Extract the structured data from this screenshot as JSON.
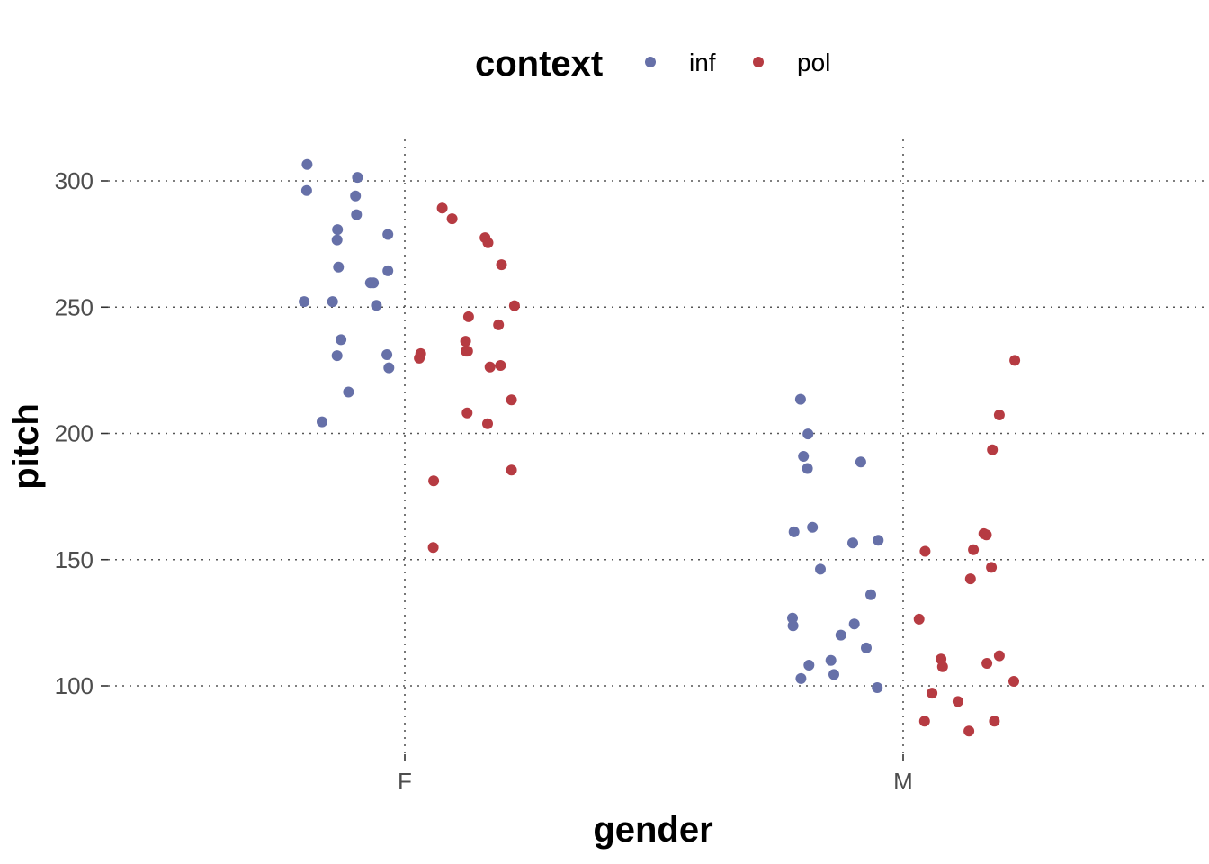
{
  "chart_data": {
    "type": "scatter",
    "title": "",
    "xlabel": "gender",
    "ylabel": "pitch",
    "categories": [
      "F",
      "M"
    ],
    "ylim": [
      70,
      315
    ],
    "yticks": [
      100,
      150,
      200,
      250,
      300
    ],
    "grid": true,
    "legend": {
      "title": "context",
      "placement": "top",
      "entries": [
        {
          "name": "inf",
          "color": "#6670a8"
        },
        {
          "name": "pol",
          "color": "#b63b42"
        }
      ]
    },
    "series": [
      {
        "name": "inf",
        "color": "#6670a8",
        "points": [
          {
            "x": "F",
            "jitter": -0.196,
            "y": 306.5
          },
          {
            "x": "F",
            "jitter": -0.197,
            "y": 296.2
          },
          {
            "x": "F",
            "jitter": -0.095,
            "y": 301.4
          },
          {
            "x": "F",
            "jitter": -0.099,
            "y": 294.0
          },
          {
            "x": "F",
            "jitter": -0.097,
            "y": 286.6
          },
          {
            "x": "F",
            "jitter": -0.135,
            "y": 280.7
          },
          {
            "x": "F",
            "jitter": -0.136,
            "y": 276.6
          },
          {
            "x": "F",
            "jitter": -0.034,
            "y": 278.8
          },
          {
            "x": "F",
            "jitter": -0.133,
            "y": 265.9
          },
          {
            "x": "F",
            "jitter": -0.034,
            "y": 264.4
          },
          {
            "x": "F",
            "jitter": -0.069,
            "y": 259.6
          },
          {
            "x": "F",
            "jitter": -0.063,
            "y": 259.6
          },
          {
            "x": "F",
            "jitter": -0.202,
            "y": 252.2
          },
          {
            "x": "F",
            "jitter": -0.145,
            "y": 252.2
          },
          {
            "x": "F",
            "jitter": -0.057,
            "y": 250.7
          },
          {
            "x": "F",
            "jitter": -0.128,
            "y": 237.1
          },
          {
            "x": "F",
            "jitter": -0.136,
            "y": 230.8
          },
          {
            "x": "F",
            "jitter": -0.036,
            "y": 231.2
          },
          {
            "x": "F",
            "jitter": -0.032,
            "y": 226.0
          },
          {
            "x": "F",
            "jitter": -0.113,
            "y": 216.4
          },
          {
            "x": "F",
            "jitter": -0.166,
            "y": 204.6
          },
          {
            "x": "M",
            "jitter": -0.206,
            "y": 213.5
          },
          {
            "x": "M",
            "jitter": -0.191,
            "y": 199.8
          },
          {
            "x": "M",
            "jitter": -0.2,
            "y": 190.9
          },
          {
            "x": "M",
            "jitter": -0.192,
            "y": 186.1
          },
          {
            "x": "M",
            "jitter": -0.085,
            "y": 188.7
          },
          {
            "x": "M",
            "jitter": -0.182,
            "y": 162.8
          },
          {
            "x": "M",
            "jitter": -0.219,
            "y": 161.0
          },
          {
            "x": "M",
            "jitter": -0.101,
            "y": 156.6
          },
          {
            "x": "M",
            "jitter": -0.05,
            "y": 157.7
          },
          {
            "x": "M",
            "jitter": -0.166,
            "y": 146.2
          },
          {
            "x": "M",
            "jitter": -0.065,
            "y": 136.1
          },
          {
            "x": "M",
            "jitter": -0.222,
            "y": 126.8
          },
          {
            "x": "M",
            "jitter": -0.221,
            "y": 123.8
          },
          {
            "x": "M",
            "jitter": -0.098,
            "y": 124.5
          },
          {
            "x": "M",
            "jitter": -0.125,
            "y": 120.1
          },
          {
            "x": "M",
            "jitter": -0.074,
            "y": 115.0
          },
          {
            "x": "M",
            "jitter": -0.145,
            "y": 110.1
          },
          {
            "x": "M",
            "jitter": -0.189,
            "y": 108.2
          },
          {
            "x": "M",
            "jitter": -0.139,
            "y": 104.5
          },
          {
            "x": "M",
            "jitter": -0.205,
            "y": 102.9
          },
          {
            "x": "M",
            "jitter": -0.052,
            "y": 99.3
          }
        ]
      },
      {
        "name": "pol",
        "color": "#b63b42",
        "points": [
          {
            "x": "F",
            "jitter": 0.075,
            "y": 289.2
          },
          {
            "x": "F",
            "jitter": 0.095,
            "y": 285.0
          },
          {
            "x": "F",
            "jitter": 0.161,
            "y": 277.5
          },
          {
            "x": "F",
            "jitter": 0.167,
            "y": 275.5
          },
          {
            "x": "F",
            "jitter": 0.194,
            "y": 266.8
          },
          {
            "x": "F",
            "jitter": 0.22,
            "y": 250.6
          },
          {
            "x": "F",
            "jitter": 0.128,
            "y": 246.2
          },
          {
            "x": "F",
            "jitter": 0.188,
            "y": 243.0
          },
          {
            "x": "F",
            "jitter": 0.122,
            "y": 236.5
          },
          {
            "x": "F",
            "jitter": 0.123,
            "y": 232.6
          },
          {
            "x": "F",
            "jitter": 0.126,
            "y": 232.6
          },
          {
            "x": "F",
            "jitter": 0.032,
            "y": 231.6
          },
          {
            "x": "F",
            "jitter": 0.029,
            "y": 229.8
          },
          {
            "x": "F",
            "jitter": 0.171,
            "y": 226.3
          },
          {
            "x": "F",
            "jitter": 0.192,
            "y": 226.9
          },
          {
            "x": "F",
            "jitter": 0.214,
            "y": 213.3
          },
          {
            "x": "F",
            "jitter": 0.125,
            "y": 208.1
          },
          {
            "x": "F",
            "jitter": 0.166,
            "y": 203.8
          },
          {
            "x": "F",
            "jitter": 0.214,
            "y": 185.5
          },
          {
            "x": "F",
            "jitter": 0.058,
            "y": 181.2
          },
          {
            "x": "F",
            "jitter": 0.057,
            "y": 154.8
          },
          {
            "x": "M",
            "jitter": 0.224,
            "y": 228.9
          },
          {
            "x": "M",
            "jitter": 0.193,
            "y": 207.3
          },
          {
            "x": "M",
            "jitter": 0.179,
            "y": 193.5
          },
          {
            "x": "M",
            "jitter": 0.162,
            "y": 160.3
          },
          {
            "x": "M",
            "jitter": 0.167,
            "y": 159.8
          },
          {
            "x": "M",
            "jitter": 0.141,
            "y": 153.9
          },
          {
            "x": "M",
            "jitter": 0.044,
            "y": 153.3
          },
          {
            "x": "M",
            "jitter": 0.177,
            "y": 146.9
          },
          {
            "x": "M",
            "jitter": 0.135,
            "y": 142.4
          },
          {
            "x": "M",
            "jitter": 0.032,
            "y": 126.4
          },
          {
            "x": "M",
            "jitter": 0.193,
            "y": 111.9
          },
          {
            "x": "M",
            "jitter": 0.076,
            "y": 110.6
          },
          {
            "x": "M",
            "jitter": 0.079,
            "y": 107.6
          },
          {
            "x": "M",
            "jitter": 0.168,
            "y": 108.9
          },
          {
            "x": "M",
            "jitter": 0.222,
            "y": 101.8
          },
          {
            "x": "M",
            "jitter": 0.058,
            "y": 97.1
          },
          {
            "x": "M",
            "jitter": 0.11,
            "y": 93.8
          },
          {
            "x": "M",
            "jitter": 0.043,
            "y": 86.0
          },
          {
            "x": "M",
            "jitter": 0.183,
            "y": 86.0
          },
          {
            "x": "M",
            "jitter": 0.132,
            "y": 82.1
          }
        ]
      }
    ]
  }
}
